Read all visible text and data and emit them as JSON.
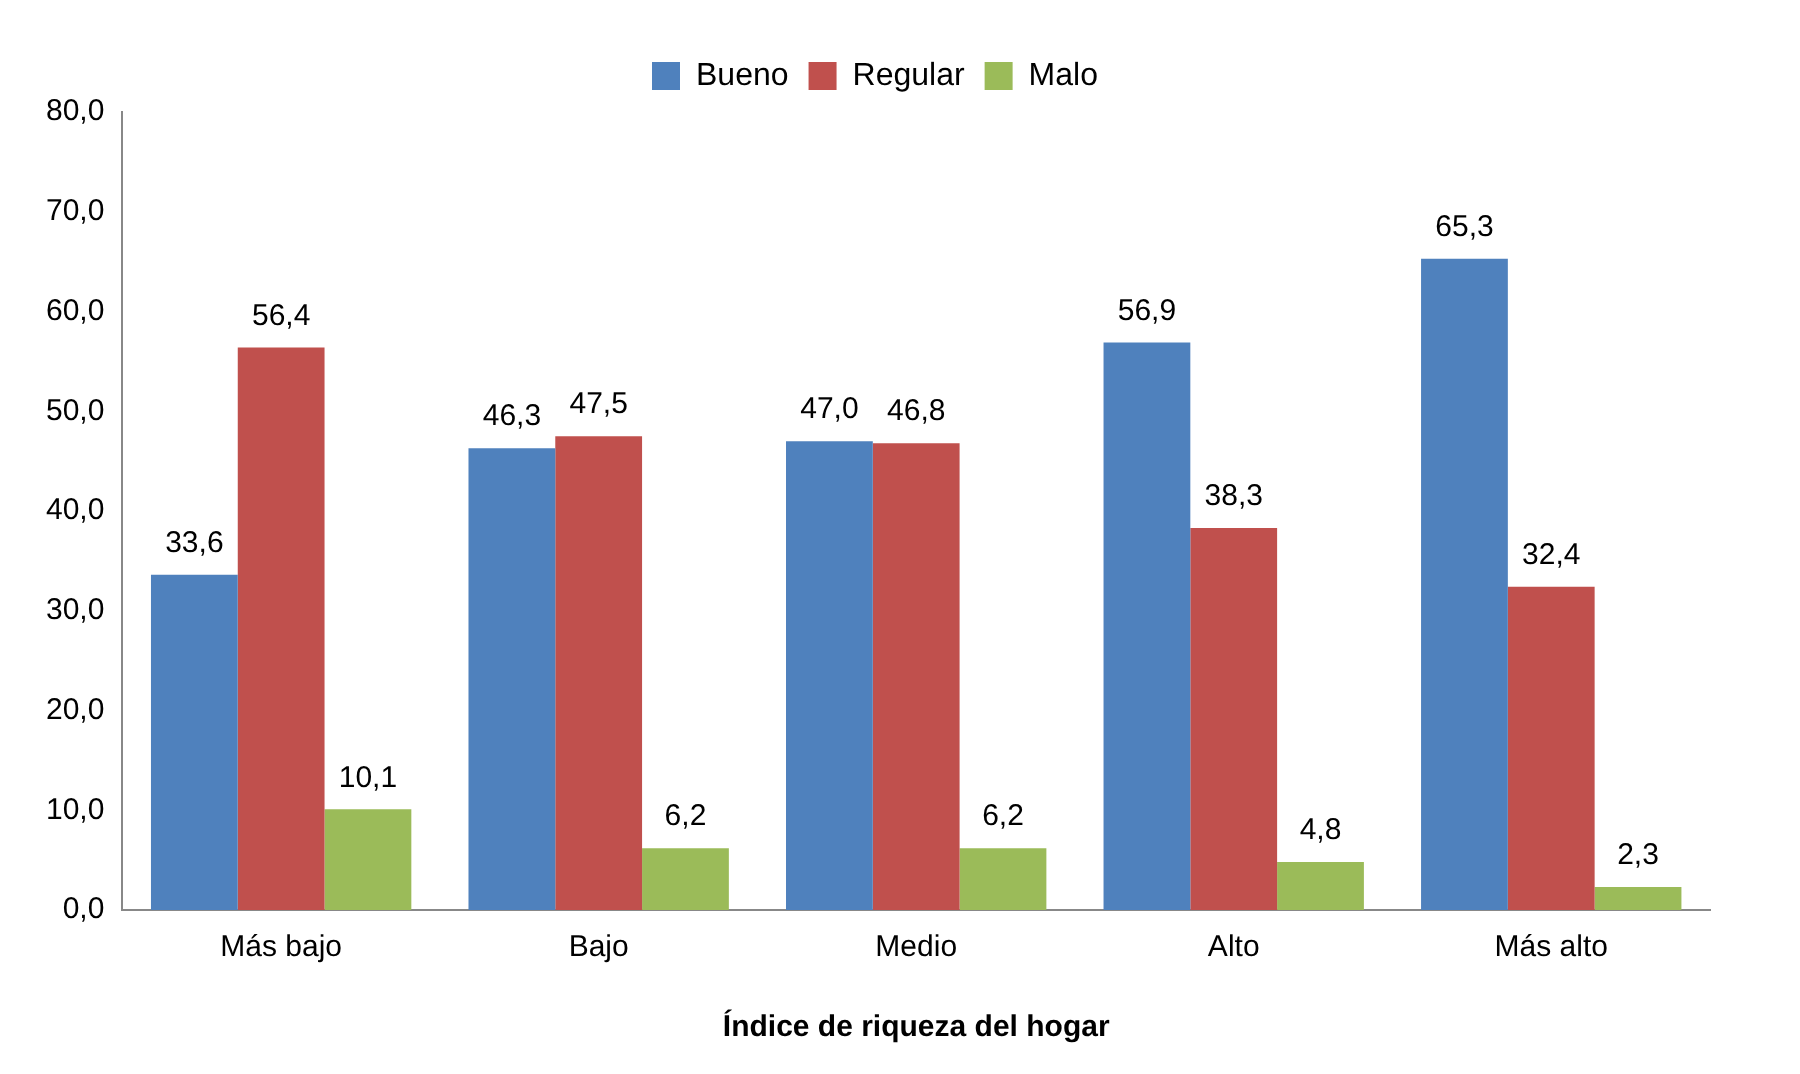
{
  "chart_data": {
    "type": "bar",
    "xlabel": "Índice de riqueza del hogar",
    "categories": [
      "Más bajo",
      "Bajo",
      "Medio",
      "Alto",
      "Más alto"
    ],
    "series": [
      {
        "name": "Bueno",
        "color": "#4f81bd",
        "values": [
          33.6,
          46.3,
          47.0,
          56.9,
          65.3
        ],
        "value_labels": [
          "33,6",
          "46,3",
          "47,0",
          "56,9",
          "65,3"
        ]
      },
      {
        "name": "Regular",
        "color": "#c0504d",
        "values": [
          56.4,
          47.5,
          46.8,
          38.3,
          32.4
        ],
        "value_labels": [
          "56,4",
          "47,5",
          "46,8",
          "38,3",
          "32,4"
        ]
      },
      {
        "name": "Malo",
        "color": "#9bbb59",
        "values": [
          10.1,
          6.2,
          6.2,
          4.8,
          2.3
        ],
        "value_labels": [
          "10,1",
          "6,2",
          "6,2",
          "4,8",
          "2,3"
        ]
      }
    ],
    "ylim": [
      0,
      80
    ],
    "yticks": [
      {
        "value": 0,
        "label": "0,0"
      },
      {
        "value": 10,
        "label": "10,0"
      },
      {
        "value": 20,
        "label": "20,0"
      },
      {
        "value": 30,
        "label": "30,0"
      },
      {
        "value": 40,
        "label": "40,0"
      },
      {
        "value": 50,
        "label": "50,0"
      },
      {
        "value": 60,
        "label": "60,0"
      },
      {
        "value": 70,
        "label": "70,0"
      },
      {
        "value": 80,
        "label": "80,0"
      }
    ],
    "grid": false,
    "legend": "top"
  }
}
